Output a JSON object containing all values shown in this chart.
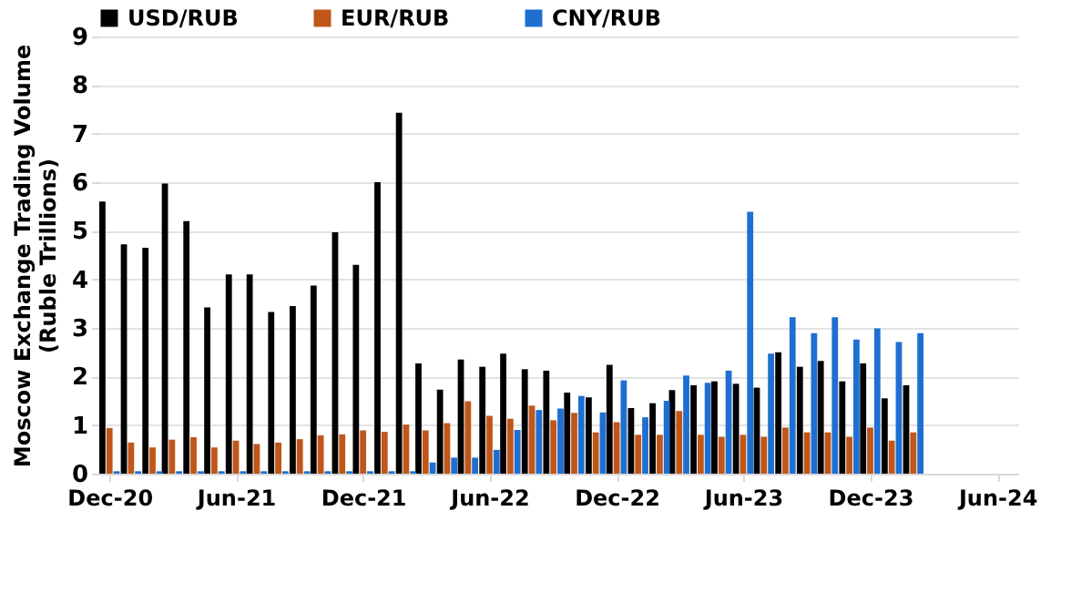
{
  "chart_data": {
    "type": "bar",
    "ylabel": "Moscow Exchange Trading Volume\n(Ruble Trillions)",
    "x": [
      "2020-12",
      "2021-01",
      "2021-02",
      "2021-03",
      "2021-04",
      "2021-05",
      "2021-06",
      "2021-07",
      "2021-08",
      "2021-09",
      "2021-10",
      "2021-11",
      "2021-12",
      "2022-01",
      "2022-02",
      "2022-03",
      "2022-04",
      "2022-05",
      "2022-06",
      "2022-07",
      "2022-08",
      "2022-09",
      "2022-10",
      "2022-11",
      "2022-12",
      "2023-01",
      "2023-02",
      "2023-03",
      "2023-04",
      "2023-05",
      "2023-06",
      "2023-07",
      "2023-08",
      "2023-09",
      "2023-10",
      "2023-11",
      "2023-12",
      "2024-01",
      "2024-02"
    ],
    "series": [
      {
        "name": "USD/RUB",
        "color": "#000000",
        "values": [
          5.6,
          4.72,
          4.65,
          5.97,
          5.2,
          3.42,
          4.1,
          4.1,
          3.33,
          3.45,
          3.87,
          4.97,
          4.3,
          6.0,
          7.43,
          2.27,
          1.73,
          2.35,
          2.2,
          2.47,
          2.15,
          2.12,
          1.67,
          1.57,
          2.24,
          1.35,
          1.45,
          1.72,
          1.82,
          1.9,
          1.85,
          1.77,
          2.5,
          2.2,
          2.32,
          1.9,
          2.27,
          1.55,
          1.82
        ]
      },
      {
        "name": "EUR/RUB",
        "color": "#c0561a",
        "values": [
          0.94,
          0.64,
          0.54,
          0.7,
          0.75,
          0.54,
          0.68,
          0.61,
          0.64,
          0.71,
          0.79,
          0.81,
          0.89,
          0.86,
          1.01,
          0.89,
          1.04,
          1.49,
          1.19,
          1.13,
          1.4,
          1.1,
          1.25,
          0.85,
          1.06,
          0.8,
          0.8,
          1.29,
          0.8,
          0.76,
          0.8,
          0.76,
          0.95,
          0.85,
          0.85,
          0.76,
          0.95,
          0.68,
          0.85
        ]
      },
      {
        "name": "CNY/RUB",
        "color": "#1f6fd1",
        "values": [
          0.05,
          0.05,
          0.05,
          0.05,
          0.05,
          0.05,
          0.05,
          0.05,
          0.05,
          0.05,
          0.05,
          0.05,
          0.05,
          0.05,
          0.05,
          0.23,
          0.33,
          0.33,
          0.49,
          0.9,
          1.31,
          1.34,
          1.6,
          1.26,
          1.92,
          1.16,
          1.5,
          2.02,
          1.87,
          2.12,
          5.39,
          2.47,
          3.22,
          2.89,
          3.22,
          2.76,
          2.99,
          2.71,
          2.89
        ]
      }
    ],
    "xlim": [
      "2020-11-15",
      "2024-07-01"
    ],
    "xticks": [
      {
        "value": "2020-12",
        "label": "Dec-20"
      },
      {
        "value": "2021-06",
        "label": "Jun-21"
      },
      {
        "value": "2021-12",
        "label": "Dec-21"
      },
      {
        "value": "2022-06",
        "label": "Jun-22"
      },
      {
        "value": "2022-12",
        "label": "Dec-22"
      },
      {
        "value": "2023-06",
        "label": "Jun-23"
      },
      {
        "value": "2023-12",
        "label": "Dec-23"
      },
      {
        "value": "2024-06",
        "label": "Jun-24"
      }
    ],
    "ylim": [
      0,
      9
    ],
    "yticks": [
      0,
      1,
      2,
      3,
      4,
      5,
      6,
      7,
      8,
      9
    ],
    "grid": "y",
    "legend": "top"
  }
}
